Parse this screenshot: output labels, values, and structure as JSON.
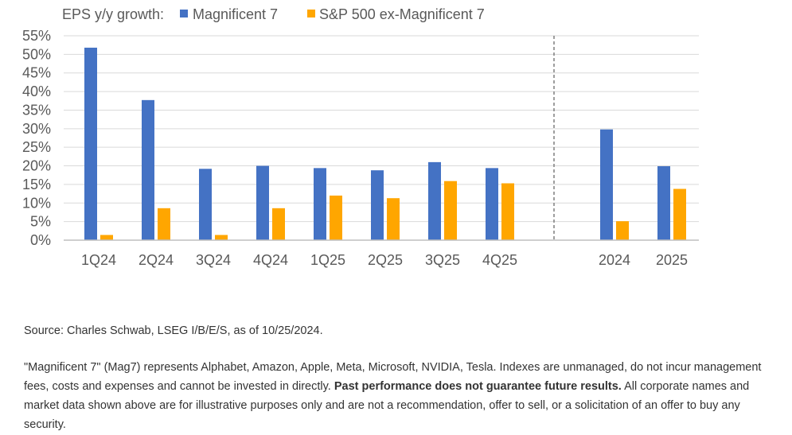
{
  "chart_data": {
    "type": "bar",
    "title": "EPS y/y growth:",
    "categories": [
      "1Q24",
      "2Q24",
      "3Q24",
      "4Q24",
      "1Q25",
      "2Q25",
      "3Q25",
      "4Q25",
      "2024",
      "2025"
    ],
    "series": [
      {
        "name": "Magnificent 7",
        "color": "#4472c4",
        "values": [
          51.8,
          37.7,
          19.2,
          20.0,
          19.4,
          18.8,
          21.0,
          19.4,
          29.8,
          19.9
        ]
      },
      {
        "name": "S&P 500 ex-Magnificent 7",
        "color": "#ffa600",
        "values": [
          1.4,
          8.6,
          1.4,
          8.6,
          12.0,
          11.3,
          15.9,
          15.3,
          5.1,
          13.8
        ]
      }
    ],
    "ylim": [
      0,
      55
    ],
    "yticks": [
      "0%",
      "5%",
      "10%",
      "15%",
      "20%",
      "25%",
      "30%",
      "35%",
      "40%",
      "45%",
      "50%",
      "55%"
    ],
    "grid": true,
    "legend": "top-left",
    "separator_after": "4Q25"
  },
  "footer": {
    "source": "Source: Charles Schwab, LSEG I/B/E/S, as of 10/25/2024.",
    "disclaimer_part1": "\"Magnificent 7\" (Mag7) represents Alphabet, Amazon, Apple, Meta, Microsoft, NVIDIA, Tesla.  Indexes are unmanaged, do not incur management fees, costs and expenses and cannot be invested in directly. ",
    "disclaimer_bold": "Past performance does not guarantee future results.",
    "disclaimer_part2": " All corporate names and market data shown above are for illustrative purposes only and are not a recommendation, offer to sell, or a solicitation of an offer to buy any security."
  }
}
